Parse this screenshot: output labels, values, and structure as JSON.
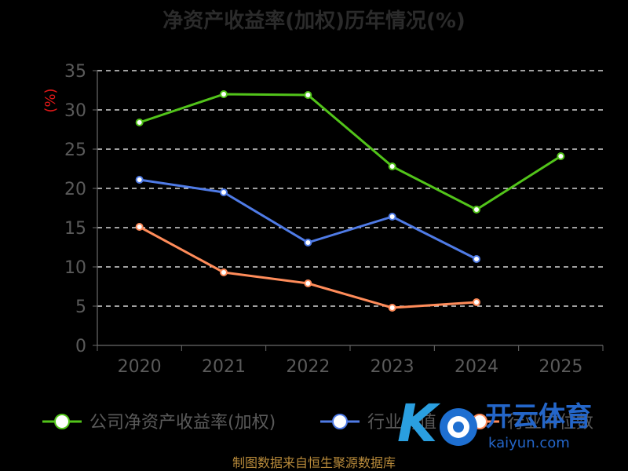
{
  "title": "净资产收益率(加权)历年情况(%)",
  "unit_label": "(%)",
  "source_text": "制图数据来自恒生聚源数据库",
  "watermark": {
    "brand_cn": "开云体育",
    "brand_en": "kaiyun.com"
  },
  "colors": {
    "company": "#52c41a",
    "industry_avg": "#4f7be6",
    "industry_median": "#ff8c5a",
    "grid": "#ffffff",
    "axis": "#6a6a6a",
    "unit": "#e01818"
  },
  "chart_data": {
    "type": "line",
    "title": "净资产收益率(加权)历年情况(%)",
    "ylabel": "(%)",
    "xlabel": "",
    "categories": [
      "2020",
      "2021",
      "2022",
      "2023",
      "2024",
      "2025"
    ],
    "ylim": [
      0,
      35
    ],
    "yticks": [
      0,
      5,
      10,
      15,
      20,
      25,
      30,
      35
    ],
    "grid": true,
    "legend_position": "bottom",
    "series": [
      {
        "name": "公司净资产收益率(加权)",
        "color": "#52c41a",
        "values": [
          28.4,
          32.0,
          31.9,
          22.8,
          17.3,
          24.1
        ]
      },
      {
        "name": "行业均值",
        "color": "#4f7be6",
        "values": [
          21.1,
          19.5,
          13.1,
          16.4,
          11.0,
          null
        ]
      },
      {
        "name": "行业中位数",
        "color": "#ff8c5a",
        "values": [
          15.1,
          9.3,
          7.9,
          4.8,
          5.5,
          null
        ]
      }
    ]
  }
}
